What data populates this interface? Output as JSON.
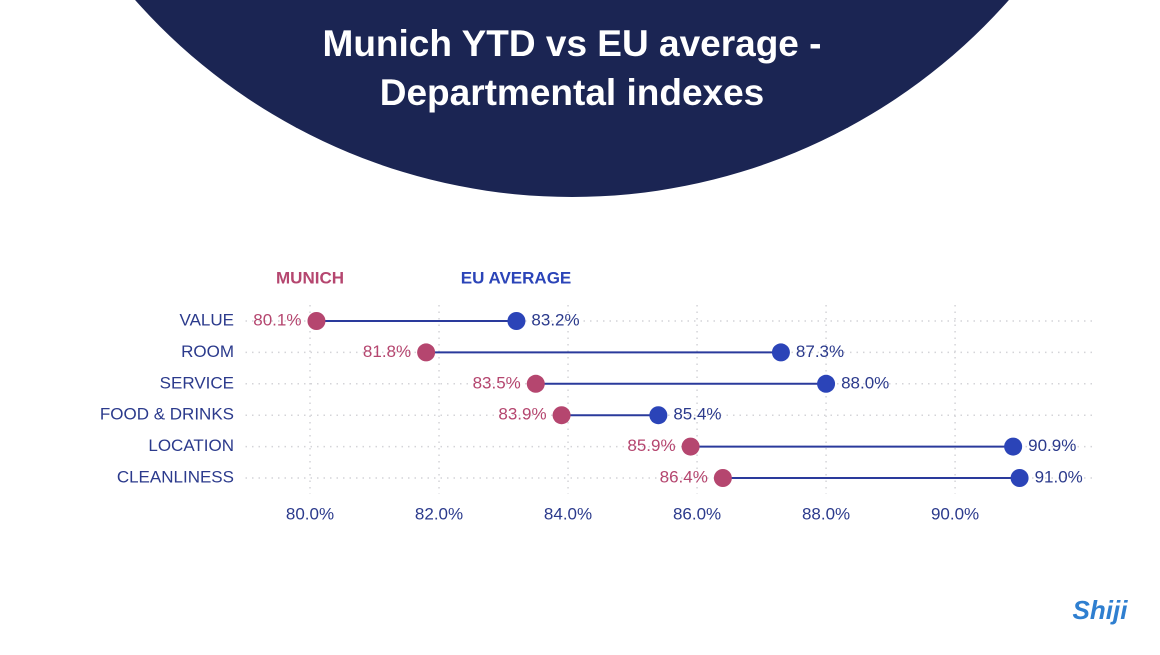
{
  "chart_data": {
    "type": "dumbbell",
    "title": "Munich YTD vs EU average -",
    "subtitle": "Departmental indexes",
    "categories": [
      "VALUE",
      "ROOM",
      "SERVICE",
      "FOOD & DRINKS",
      "LOCATION",
      "CLEANLINESS"
    ],
    "series": [
      {
        "name": "MUNICH",
        "color": "#b5466f",
        "values": [
          80.1,
          81.8,
          83.5,
          83.9,
          85.9,
          86.4
        ],
        "value_labels": [
          "80.1%",
          "81.8%",
          "83.5%",
          "83.9%",
          "85.9%",
          "86.4%"
        ]
      },
      {
        "name": "EU AVERAGE",
        "color": "#2b44b8",
        "values": [
          83.2,
          87.3,
          88.0,
          85.4,
          90.9,
          91.0
        ],
        "value_labels": [
          "83.2%",
          "87.3%",
          "88.0%",
          "85.4%",
          "90.9%",
          "91.0%"
        ]
      }
    ],
    "xlim": [
      79,
      92.2
    ],
    "xticks": [
      {
        "value": 80,
        "label": "80.0%"
      },
      {
        "value": 82,
        "label": "82.0%"
      },
      {
        "value": 84,
        "label": "84.0%"
      },
      {
        "value": 86,
        "label": "86.0%"
      },
      {
        "value": 88,
        "label": "88.0%"
      },
      {
        "value": 90,
        "label": "90.0%"
      }
    ],
    "grid": true
  },
  "logo": "Shiji"
}
